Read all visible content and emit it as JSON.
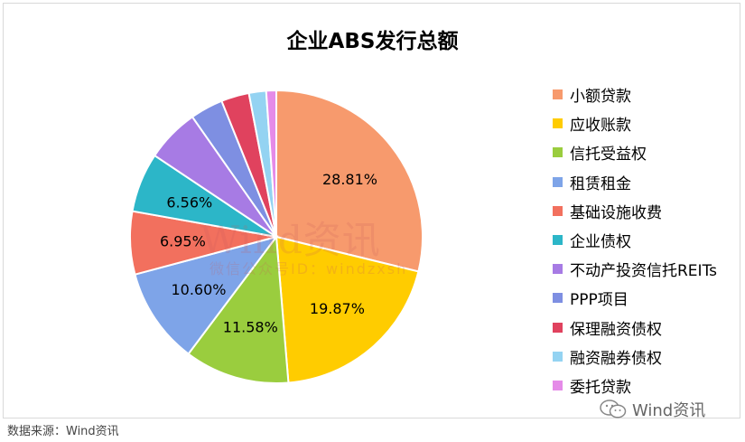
{
  "chart_data": {
    "type": "pie",
    "title": "企业ABS发行总额",
    "categories": [
      "小额贷款",
      "应收账款",
      "信托受益权",
      "租赁租金",
      "基础设施收费",
      "企业债权",
      "不动产投资信托REITs",
      "PPP项目",
      "保理融资债权",
      "融资融券债权",
      "委托贷款"
    ],
    "values": [
      28.81,
      19.87,
      11.58,
      10.6,
      6.95,
      6.56,
      5.9,
      3.63,
      3.09,
      1.9,
      1.11
    ],
    "value_labels": [
      "28.81%",
      "19.87%",
      "11.58%",
      "10.60%",
      "6.95%",
      "6.56%",
      "",
      "",
      "",
      "",
      ""
    ],
    "colors": [
      "#F79A6D",
      "#FFCC00",
      "#9ACD3E",
      "#7EA4E8",
      "#F2705E",
      "#2CB6C8",
      "#A77BE4",
      "#7E8FE2",
      "#E0425E",
      "#94D3F2",
      "#E58BE8"
    ],
    "legend_position": "right"
  },
  "watermark": {
    "main": "Wind资讯",
    "sub": "微信公众号ID：windzxsh"
  },
  "source_note": "数据来源：Wind资讯",
  "brand": {
    "icon": "wechat-icon",
    "text": "Wind资讯"
  }
}
